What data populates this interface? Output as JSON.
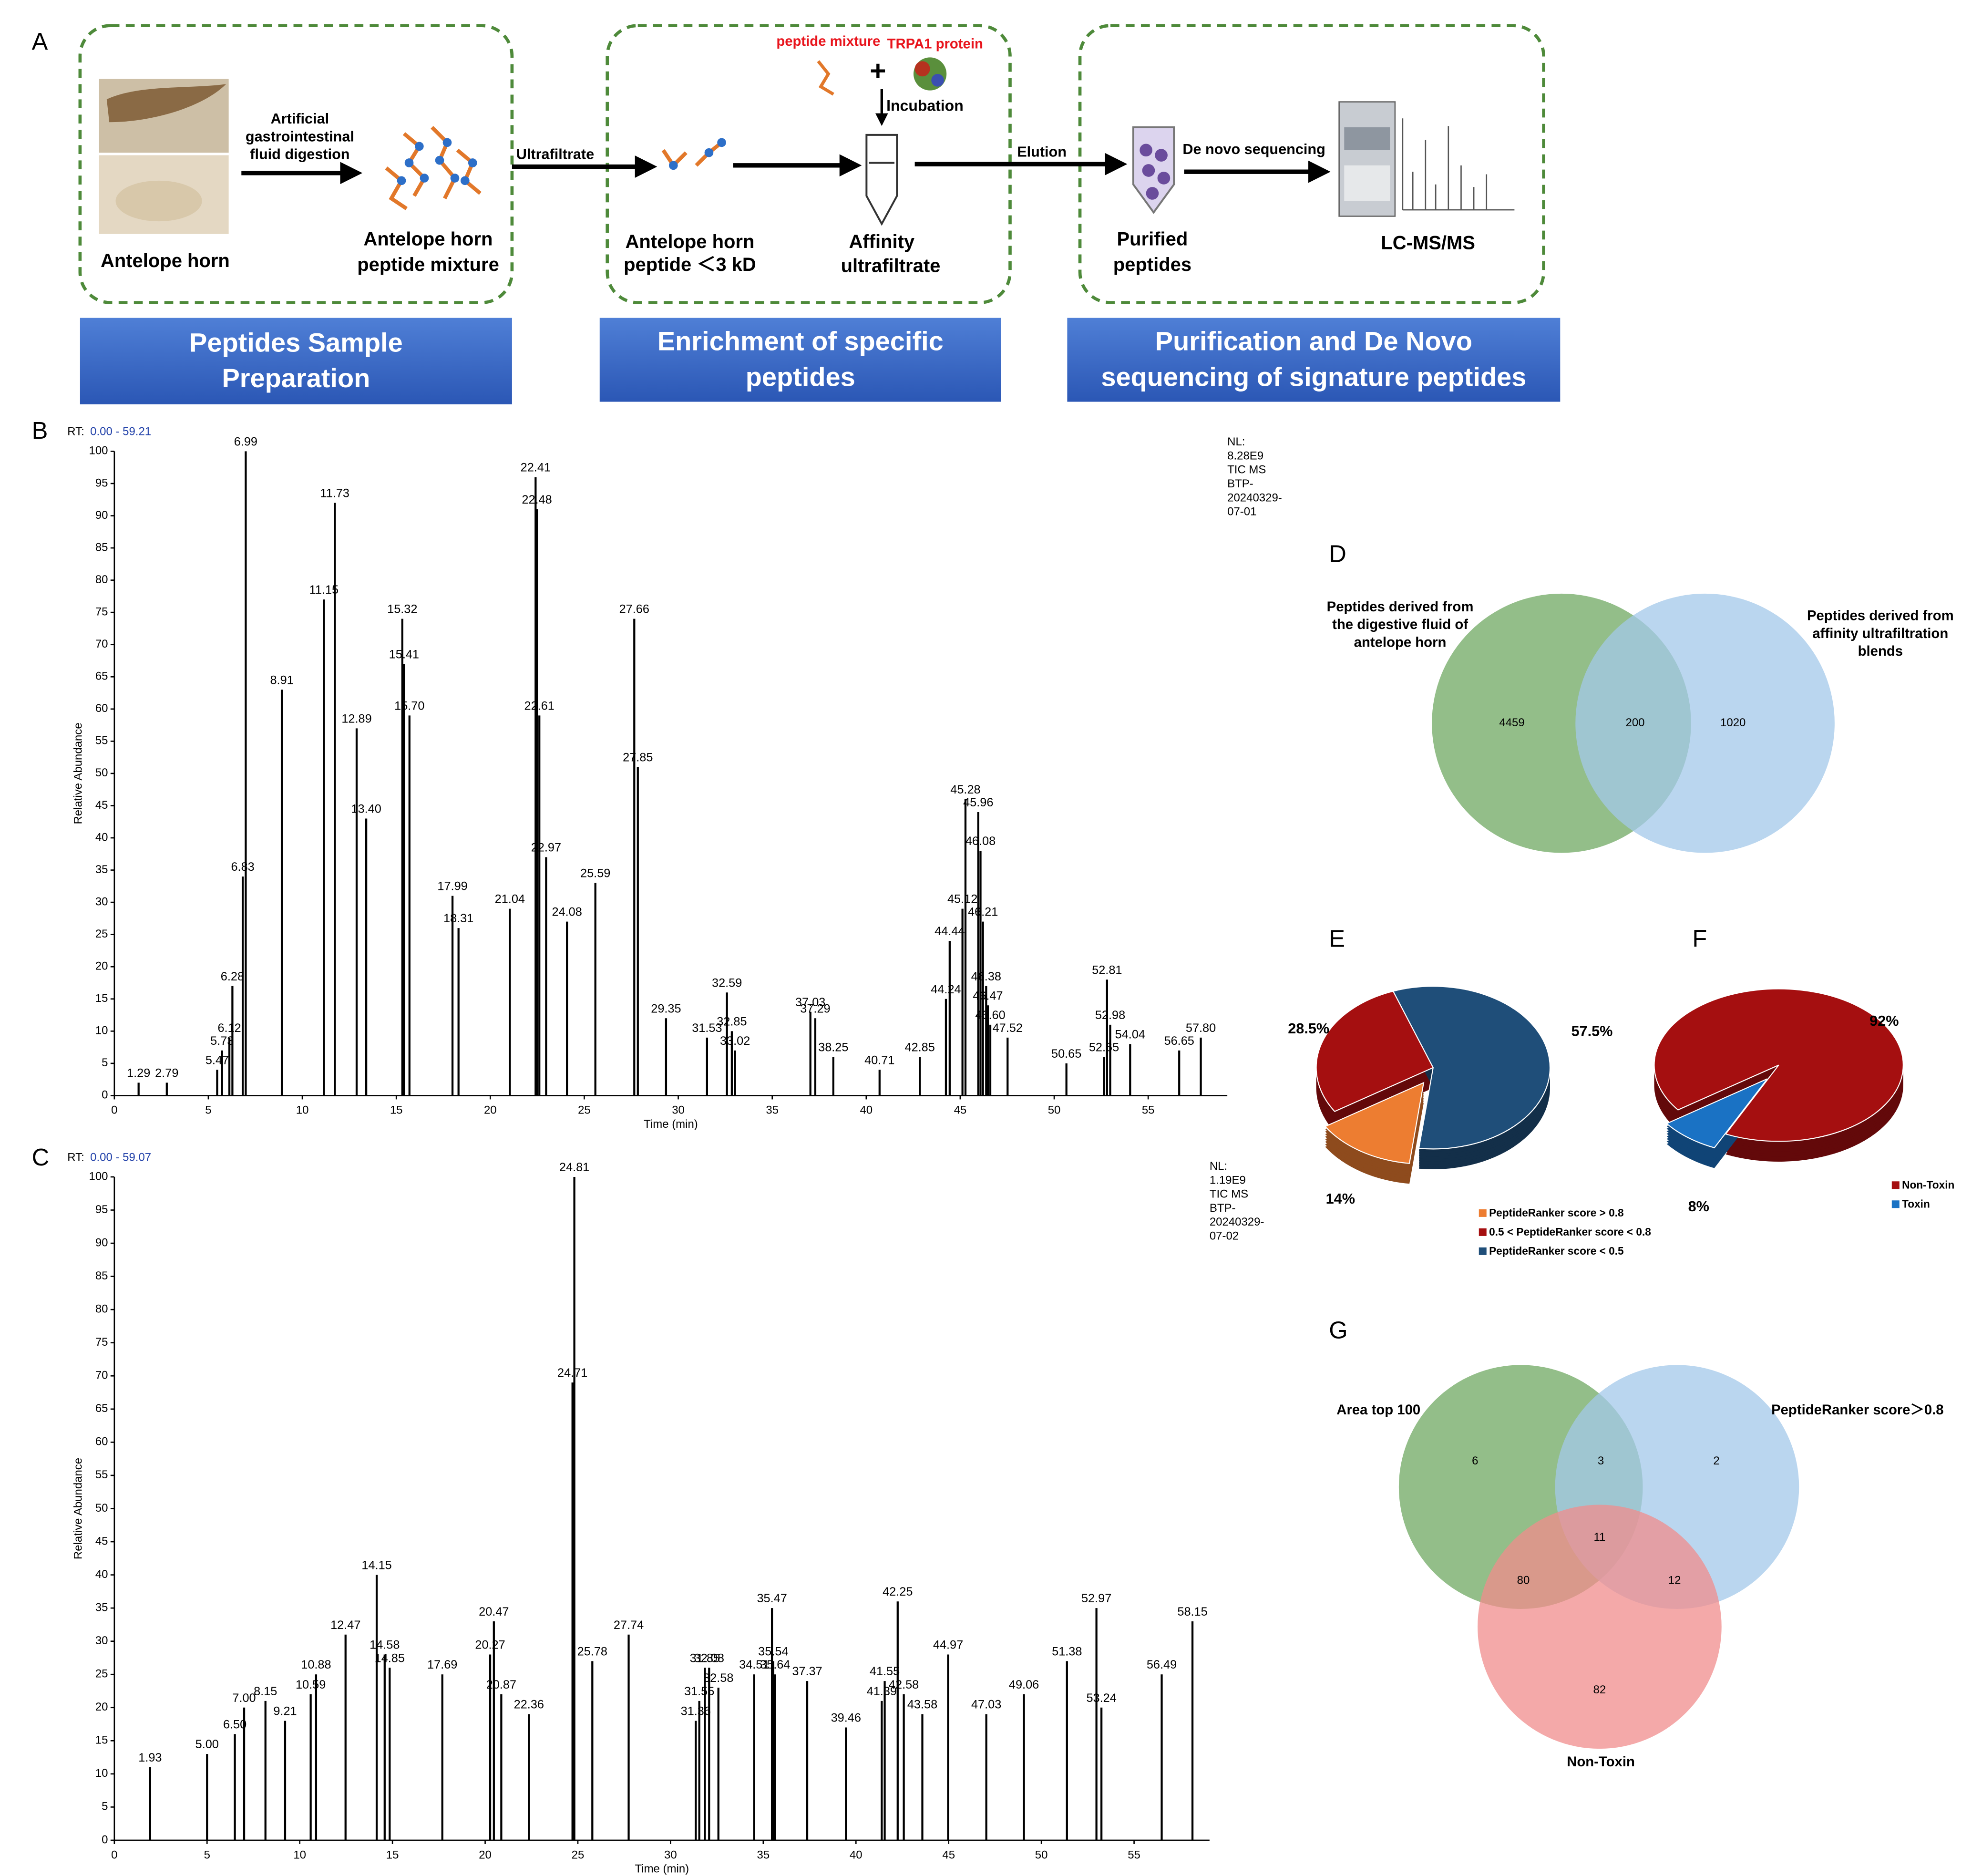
{
  "panel_labels": [
    "A",
    "B",
    "C",
    "D",
    "E",
    "F",
    "G"
  ],
  "workflow": {
    "banners": [
      [
        "Peptides Sample",
        "Preparation"
      ],
      [
        "Enrichment of specific",
        "peptides"
      ],
      [
        "Purification and De Novo",
        "sequencing of signature peptides"
      ]
    ],
    "labels": {
      "raw": "Antelope horn",
      "digestion": [
        "Artificial",
        "gastrointestinal",
        "fluid digestion"
      ],
      "mixture": [
        "Antelope horn",
        "peptide mixture"
      ],
      "ultrafiltrate": "Ultrafiltrate",
      "small": [
        "Antelope horn",
        "peptide ＜3 kD"
      ],
      "peptide_mixture": "peptide mixture",
      "plus": "+",
      "protein": "TRPA1 protein",
      "incubation": "Incubation",
      "affinity": [
        "Affinity",
        "ultrafiltrate"
      ],
      "elution": "Elution",
      "purified": [
        "Purified",
        "peptides"
      ],
      "sequencing": "De novo sequencing",
      "instrument": "LC-MS/MS"
    }
  },
  "chart_data": [
    {
      "type": "line",
      "rt_label": "RT:",
      "rt_range": "0.00 - 59.21",
      "info": [
        "NL:",
        "8.28E9",
        "TIC  MS",
        "BTP-",
        "20240329-",
        "07-01"
      ],
      "xlabel": "Time (min)",
      "ylabel": "Relative Abundance",
      "color": "#000000",
      "x": [
        1.29,
        2.79,
        5.47,
        5.73,
        6.12,
        6.28,
        6.83,
        6.99,
        8.91,
        11.15,
        11.73,
        12.89,
        13.4,
        15.32,
        15.41,
        15.7,
        17.99,
        18.31,
        21.04,
        22.41,
        22.48,
        22.61,
        22.97,
        24.08,
        25.59,
        27.66,
        27.85,
        29.35,
        31.53,
        32.59,
        32.85,
        33.02,
        37.03,
        37.29,
        38.25,
        40.71,
        42.85,
        44.24,
        44.44,
        45.12,
        45.28,
        45.96,
        46.08,
        46.21,
        46.38,
        46.47,
        46.6,
        47.52,
        50.65,
        52.65,
        52.81,
        52.98,
        54.04,
        56.65,
        57.8
      ],
      "peak_labels": [
        "1.29",
        "2.79",
        "5.47",
        "5.73",
        "6.12",
        "6.28",
        "6.83",
        "6.99",
        "8.91",
        "11.15",
        "11.73",
        "12.89",
        "13.40",
        "15.32",
        "15.41",
        "15.70",
        "17.99",
        "18.31",
        "21.04",
        "22.41",
        "22.48",
        "22.61",
        "22.97",
        "24.08",
        "25.59",
        "27.66",
        "27.85",
        "29.35",
        "31.53",
        "32.59",
        "32.85",
        "33.02",
        "37.03",
        "37.29",
        "38.25",
        "40.71",
        "42.85",
        "44.24",
        "44.44",
        "45.12",
        "45.28",
        "45.96",
        "46.08",
        "46.21",
        "46.38",
        "46.47",
        "46.60",
        "47.52",
        "50.65",
        "52.65",
        "52.81",
        "52.98",
        "54.04",
        "56.65",
        "57.80"
      ],
      "values": [
        2,
        2,
        4,
        7,
        9,
        17,
        34,
        100,
        63,
        77,
        92,
        57,
        43,
        74,
        67,
        59,
        31,
        26,
        29,
        96,
        91,
        59,
        37,
        27,
        33,
        74,
        51,
        12,
        9,
        16,
        10,
        7,
        13,
        12,
        6,
        4,
        6,
        15,
        24,
        29,
        46,
        44,
        38,
        27,
        17,
        14,
        11,
        9,
        5,
        6,
        18,
        11,
        8,
        7,
        9
      ],
      "xlim": [
        0,
        59.21
      ],
      "ylim": [
        0,
        100
      ],
      "xticks": [
        0,
        5,
        10,
        15,
        20,
        25,
        30,
        35,
        40,
        45,
        50,
        55
      ],
      "yticks": [
        0,
        5,
        10,
        15,
        20,
        25,
        30,
        35,
        40,
        45,
        50,
        55,
        60,
        65,
        70,
        75,
        80,
        85,
        90,
        95,
        100
      ]
    },
    {
      "type": "line",
      "rt_label": "RT:",
      "rt_range": "0.00 - 59.07",
      "info": [
        "NL:",
        "1.19E9",
        "TIC  MS",
        "BTP-",
        "20240329-",
        "07-02"
      ],
      "xlabel": "Time (min)",
      "ylabel": "Relative Abundance",
      "color": "#000000",
      "x": [
        1.93,
        5.0,
        6.5,
        7.0,
        8.15,
        9.21,
        10.59,
        10.88,
        12.47,
        14.15,
        14.58,
        14.85,
        17.69,
        20.27,
        20.47,
        20.87,
        22.36,
        24.71,
        24.81,
        25.78,
        27.74,
        31.36,
        31.55,
        31.85,
        32.08,
        32.58,
        34.51,
        35.47,
        35.54,
        35.64,
        37.37,
        39.46,
        41.39,
        41.55,
        42.25,
        42.58,
        43.58,
        44.97,
        47.03,
        49.06,
        51.38,
        52.97,
        53.24,
        56.49,
        58.15
      ],
      "peak_labels": [
        "1.93",
        "5.00",
        "6.50",
        "7.00",
        "8.15",
        "9.21",
        "10.59",
        "10.88",
        "12.47",
        "14.15",
        "14.58",
        "14.85",
        "17.69",
        "20.27",
        "20.47",
        "20.87",
        "22.36",
        "24.71",
        "24.81",
        "25.78",
        "27.74",
        "31.36",
        "31.55",
        "31.85",
        "32.08",
        "32.58",
        "34.51",
        "35.47",
        "35.54",
        "35.64",
        "37.37",
        "39.46",
        "41.39",
        "41.55",
        "42.25",
        "42.58",
        "43.58",
        "44.97",
        "47.03",
        "49.06",
        "51.38",
        "52.97",
        "53.24",
        "56.49",
        "58.15"
      ],
      "values": [
        11,
        13,
        16,
        20,
        21,
        18,
        22,
        25,
        31,
        40,
        28,
        26,
        25,
        28,
        33,
        22,
        19,
        69,
        100,
        27,
        31,
        18,
        21,
        26,
        26,
        23,
        25,
        35,
        27,
        25,
        24,
        17,
        21,
        24,
        36,
        22,
        19,
        28,
        19,
        22,
        27,
        35,
        20,
        25,
        33
      ],
      "xlim": [
        0,
        59.07
      ],
      "ylim": [
        0,
        100
      ],
      "xticks": [
        0,
        5,
        10,
        15,
        20,
        25,
        30,
        35,
        40,
        45,
        50,
        55
      ],
      "yticks": [
        0,
        5,
        10,
        15,
        20,
        25,
        30,
        35,
        40,
        45,
        50,
        55,
        60,
        65,
        70,
        75,
        80,
        85,
        90,
        95,
        100
      ]
    },
    {
      "type": "venn",
      "sets": [
        {
          "name": [
            "Peptides derived from",
            "the digestive fluid of",
            "antelope horn"
          ],
          "color": "#6fa862"
        },
        {
          "name": [
            "Peptides derived from",
            "affinity ultrafiltration",
            "blends"
          ],
          "color": "#a3c8ea"
        }
      ],
      "values": [
        4459,
        200,
        1020
      ]
    },
    {
      "type": "pie",
      "categories": [
        "PeptideRanker score > 0.8",
        "0.5 < PeptideRanker score < 0.8",
        "PeptideRanker score < 0.5"
      ],
      "values": [
        14,
        28.5,
        57.5
      ],
      "value_labels": [
        "14%",
        "28.5%",
        "57.5%"
      ],
      "colors": [
        "#ed7d31",
        "#a50f10",
        "#1f4e79"
      ]
    },
    {
      "type": "pie",
      "categories": [
        "Non-Toxin",
        "Toxin"
      ],
      "values": [
        92,
        8
      ],
      "value_labels": [
        "92%",
        "8%"
      ],
      "colors": [
        "#a50f10",
        "#1a72c4"
      ]
    },
    {
      "type": "venn",
      "sets": [
        {
          "name": [
            "Area top 100"
          ],
          "color": "#6fa862"
        },
        {
          "name": [
            "PeptideRanker score＞0.8"
          ],
          "color": "#a3c8ea"
        },
        {
          "name": [
            "Non-Toxin"
          ],
          "color": "#f08c8c"
        }
      ],
      "values": [
        6,
        3,
        2,
        11,
        80,
        12,
        82
      ]
    }
  ]
}
